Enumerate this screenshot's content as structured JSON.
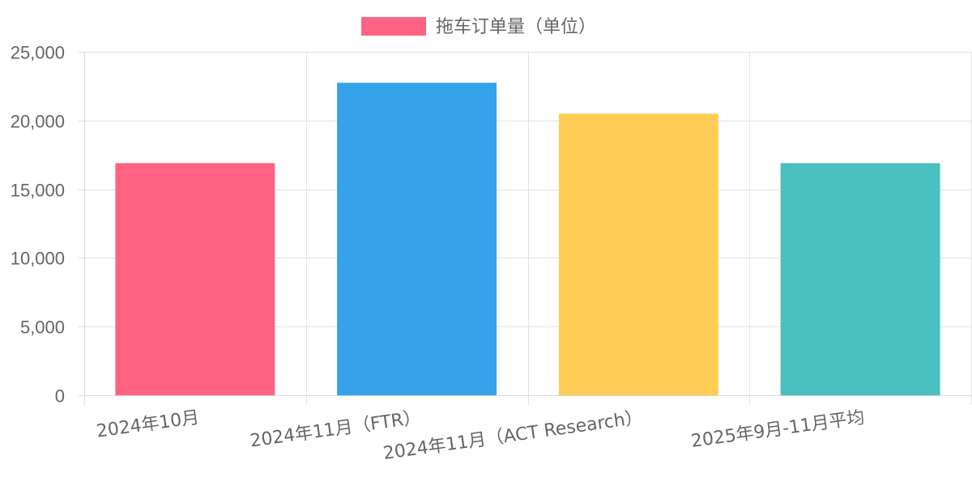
{
  "chart_data": {
    "type": "bar",
    "categories": [
      "2024年10月",
      "2024年11月（FTR）",
      "2024年11月（ACT Research）",
      "2025年9月-11月平均"
    ],
    "series": [
      {
        "name": "拖车订单量（单位）",
        "values": [
          16900,
          22750,
          20500,
          16900
        ],
        "colors": [
          "#ff6384",
          "#36a2eb",
          "#ffcd56",
          "#4bc0c0"
        ]
      }
    ],
    "title": "",
    "xlabel": "",
    "ylabel": "",
    "ylim": [
      0,
      25000
    ],
    "y_ticks": [
      0,
      5000,
      10000,
      15000,
      20000,
      25000
    ],
    "y_tick_labels": [
      "0",
      "5,000",
      "10,000",
      "15,000",
      "20,000",
      "25,000"
    ],
    "grid": true,
    "legend_position": "top-center",
    "legend_color": "#ff6384"
  }
}
